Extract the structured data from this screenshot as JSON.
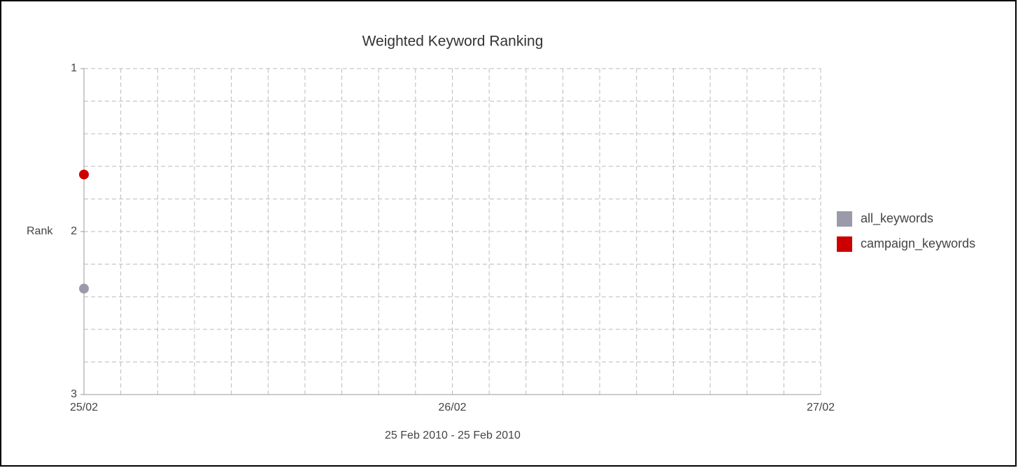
{
  "chart_data": {
    "type": "scatter",
    "title": "Weighted Keyword Ranking",
    "subtitle": "25 Feb 2010 - 25 Feb 2010",
    "y_label": "Rank",
    "xticks": [
      "25/02",
      "26/02",
      "27/02"
    ],
    "ylim": [
      1,
      3
    ],
    "y_reversed": true,
    "yticks": [
      1,
      2,
      3
    ],
    "grid": true,
    "legend": "right",
    "series": [
      {
        "name": "all_keywords",
        "color": "#9a9aaa",
        "x": [
          "25/02"
        ],
        "values": [
          2.35
        ]
      },
      {
        "name": "campaign_keywords",
        "color": "#cc0000",
        "x": [
          "25/02"
        ],
        "values": [
          1.65
        ]
      }
    ]
  }
}
